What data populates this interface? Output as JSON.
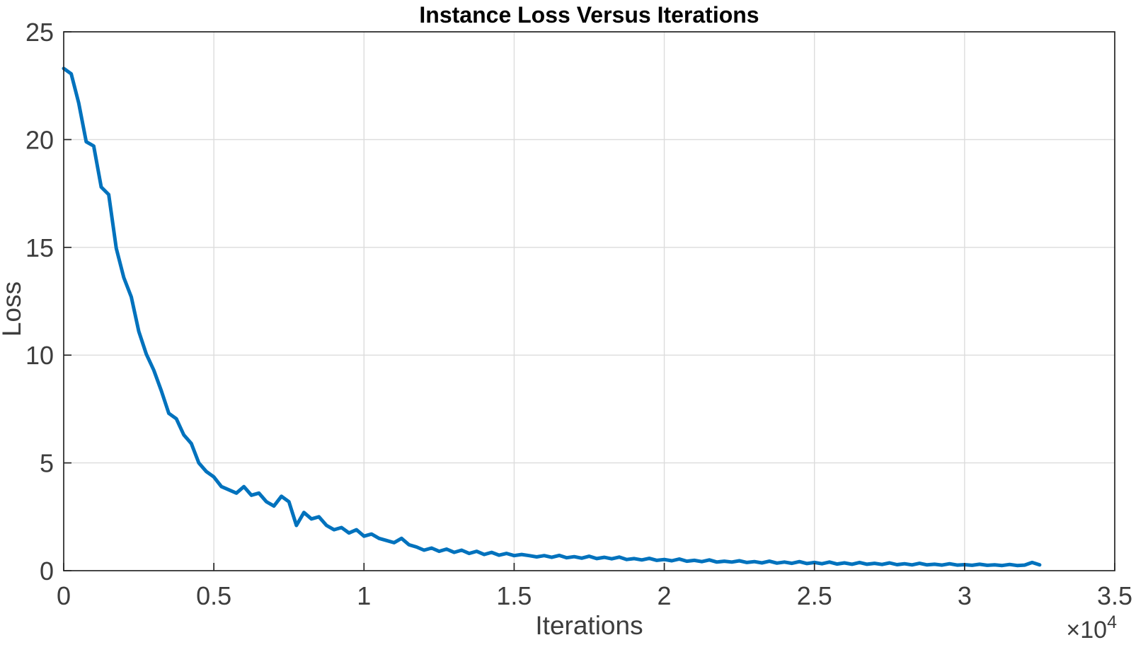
{
  "figure": {
    "title": "Instance Loss Versus Iterations",
    "x_axis_label": "Iterations",
    "y_axis_label": "Loss",
    "x_multiplier_base": "×10",
    "x_multiplier_exponent": "4"
  },
  "chart_data": {
    "type": "line",
    "title": "Instance Loss Versus Iterations",
    "xlabel": "Iterations",
    "ylabel": "Loss",
    "x_unit_multiplier": 10000,
    "xlim": [
      0,
      35000
    ],
    "ylim": [
      0,
      25
    ],
    "grid": true,
    "legend_position": "none",
    "line_color": "#0072BD",
    "x_ticks": {
      "values": [
        0,
        5000,
        10000,
        15000,
        20000,
        25000,
        30000,
        35000
      ],
      "labels": [
        "0",
        "0.5",
        "1",
        "1.5",
        "2",
        "2.5",
        "3",
        "3.5"
      ]
    },
    "y_ticks": {
      "values": [
        0,
        5,
        10,
        15,
        20,
        25
      ],
      "labels": [
        "0",
        "5",
        "10",
        "15",
        "20",
        "25"
      ]
    },
    "series": [
      {
        "name": "Instance Loss",
        "x_start": 0,
        "x_step": 250,
        "y": [
          23.3,
          23.05,
          21.7,
          19.9,
          19.7,
          17.8,
          17.45,
          14.95,
          13.6,
          12.7,
          11.1,
          10.05,
          9.3,
          8.35,
          7.3,
          7.05,
          6.3,
          5.9,
          5.0,
          4.6,
          4.35,
          3.9,
          3.75,
          3.6,
          3.9,
          3.5,
          3.6,
          3.2,
          3.0,
          3.45,
          3.2,
          2.1,
          2.7,
          2.4,
          2.5,
          2.1,
          1.9,
          2.0,
          1.75,
          1.9,
          1.6,
          1.7,
          1.5,
          1.4,
          1.3,
          1.5,
          1.2,
          1.1,
          0.95,
          1.05,
          0.9,
          1.0,
          0.85,
          0.95,
          0.8,
          0.9,
          0.75,
          0.85,
          0.72,
          0.8,
          0.7,
          0.75,
          0.7,
          0.64,
          0.7,
          0.62,
          0.71,
          0.6,
          0.65,
          0.58,
          0.67,
          0.56,
          0.62,
          0.55,
          0.63,
          0.52,
          0.56,
          0.5,
          0.57,
          0.48,
          0.52,
          0.46,
          0.54,
          0.44,
          0.48,
          0.42,
          0.5,
          0.4,
          0.44,
          0.4,
          0.46,
          0.38,
          0.42,
          0.36,
          0.44,
          0.35,
          0.4,
          0.34,
          0.42,
          0.33,
          0.38,
          0.32,
          0.4,
          0.31,
          0.36,
          0.3,
          0.38,
          0.3,
          0.34,
          0.29,
          0.36,
          0.28,
          0.32,
          0.27,
          0.34,
          0.27,
          0.3,
          0.26,
          0.32,
          0.26,
          0.28,
          0.25,
          0.3,
          0.25,
          0.27,
          0.24,
          0.29,
          0.24,
          0.26,
          0.38,
          0.27
        ]
      }
    ]
  }
}
